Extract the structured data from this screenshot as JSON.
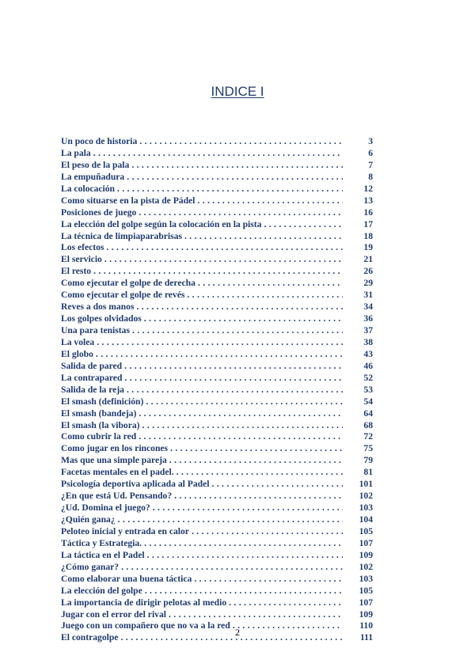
{
  "title": "INDICE I",
  "entries": [
    {
      "label": "Un poco de historia",
      "page": "3"
    },
    {
      "label": "La pala",
      "page": "6"
    },
    {
      "label": "El peso de la pala",
      "page": "7"
    },
    {
      "label": "La empuñadura",
      "page": "8"
    },
    {
      "label": "La colocación",
      "page": "12"
    },
    {
      "label": "Como situarse en la pista de Pádel",
      "page": "13"
    },
    {
      "label": "Posiciones de juego",
      "page": "16"
    },
    {
      "label": "La elección del golpe según la colocación en la pista",
      "page": "17"
    },
    {
      "label": "La técnica de limpiaparabrisas",
      "page": "18"
    },
    {
      "label": "Los efectos",
      "page": "19"
    },
    {
      "label": "El servicio",
      "page": "21"
    },
    {
      "label": "El resto",
      "page": "26"
    },
    {
      "label": "Como ejecutar el golpe de derecha",
      "page": "29"
    },
    {
      "label": "Como ejecutar el golpe de revés",
      "page": "31"
    },
    {
      "label": "Reves a dos manos",
      "page": "34"
    },
    {
      "label": "Los golpes olvidados",
      "page": "36"
    },
    {
      "label": "Una para tenistas",
      "page": "37"
    },
    {
      "label": "La volea",
      "page": "38"
    },
    {
      "label": "El globo",
      "page": "43"
    },
    {
      "label": "Salida de pared",
      "page": "46"
    },
    {
      "label": "La contrapared",
      "page": "52"
    },
    {
      "label": "Salida de la reja",
      "page": "53"
    },
    {
      "label": "El smash (definición)",
      "page": "54"
    },
    {
      "label": "El smash  (bandeja)",
      "page": "64"
    },
    {
      "label": "El smash  (la vibora)",
      "page": "68"
    },
    {
      "label": "Como cubrir la red",
      "page": "72"
    },
    {
      "label": "Como jugar en los rincones",
      "page": "75"
    },
    {
      "label": "Mas que una simple pareja",
      "page": "79"
    },
    {
      "label": "Facetas mentales en el padel.",
      "page": "81"
    },
    {
      "label": "Psicología deportiva aplicada al Padel",
      "page": "101"
    },
    {
      "label": "¿En que está Ud. Pensando?",
      "page": "102"
    },
    {
      "label": "¿Ud. Domina el juego?",
      "page": "103"
    },
    {
      "label": "¿Quién gana¿",
      "page": "104"
    },
    {
      "label": "Peloteo inicial y entrada en calor",
      "page": "105"
    },
    {
      "label": "Táctica y Estrategia.",
      "page": "107"
    },
    {
      "label": "La táctica en el Padel",
      "page": "109"
    },
    {
      "label": "¿Cómo ganar?",
      "page": "102"
    },
    {
      "label": "Como elaborar una buena táctica",
      "page": "103"
    },
    {
      "label": "La elección del golpe",
      "page": "105"
    },
    {
      "label": "La importancia de dirigir pelotas al medio",
      "page": "107"
    },
    {
      "label": "Jugar con el error del rival",
      "page": "109"
    },
    {
      "label": "Juego con un compañero que no va a la red",
      "page": "110"
    },
    {
      "label": "El contragolpe",
      "page": "111"
    }
  ],
  "page_number": "2",
  "colors": {
    "text": "#1f3b6f"
  }
}
